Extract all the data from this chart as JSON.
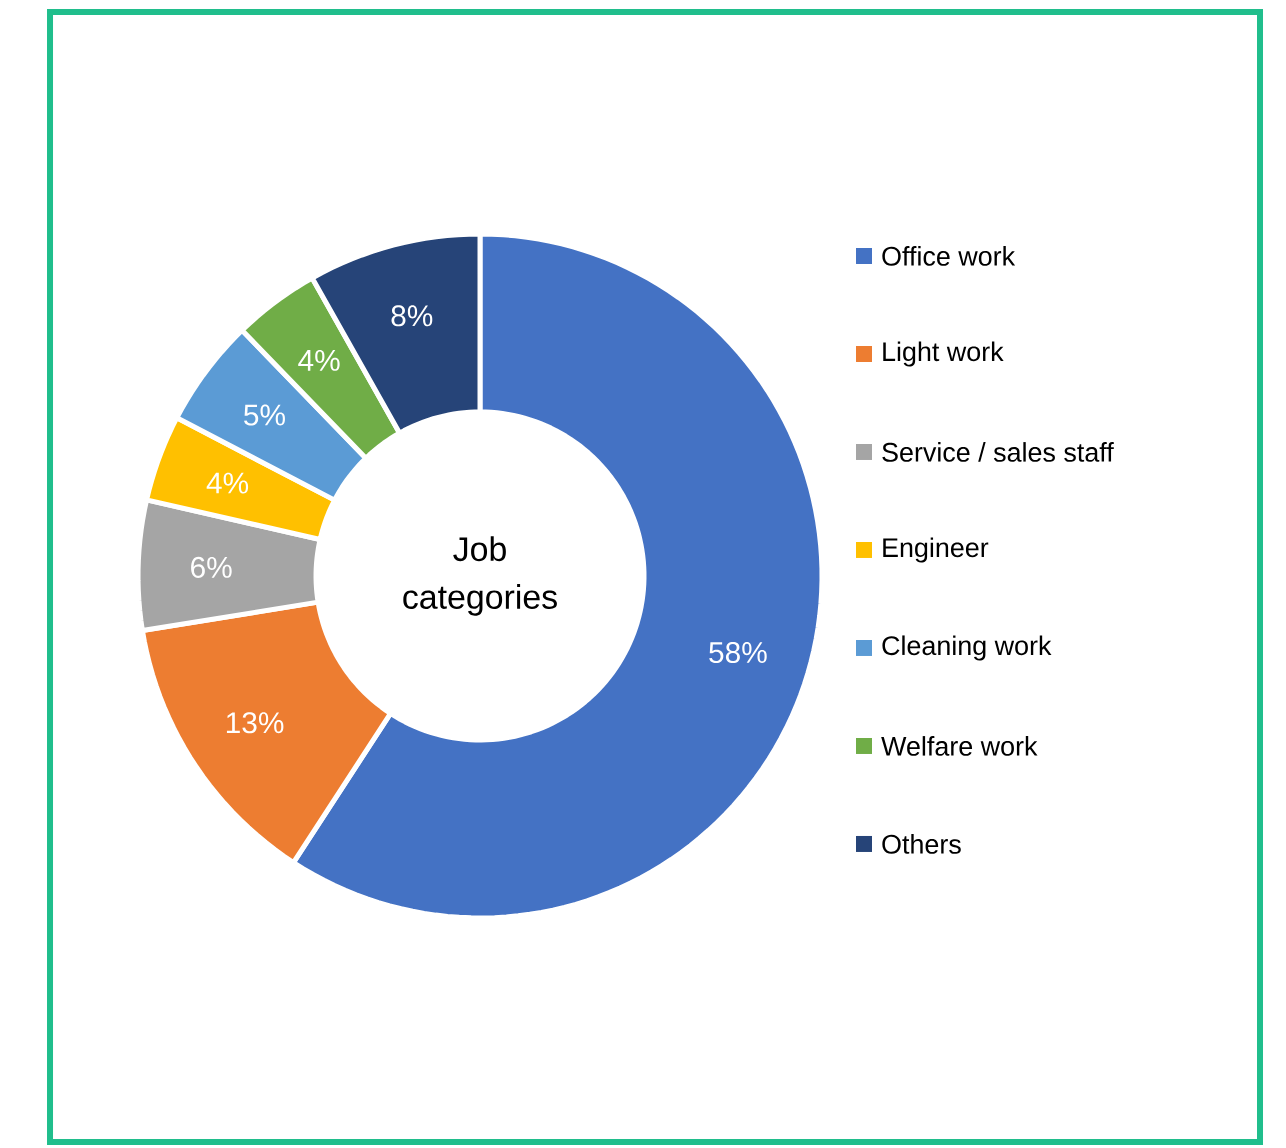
{
  "chart_data": {
    "type": "donut",
    "title": "Job categories",
    "categories": [
      "Office work",
      "Light work",
      "Service / sales staff",
      "Engineer",
      "Cleaning work",
      "Welfare work",
      "Others"
    ],
    "values": [
      58,
      13,
      6,
      4,
      5,
      4,
      8
    ],
    "value_labels": [
      "58%",
      "13%",
      "6%",
      "4%",
      "5%",
      "4%",
      "8%"
    ],
    "colors": [
      "#4472c4",
      "#ed7d31",
      "#a5a5a5",
      "#ffc000",
      "#5b9bd5",
      "#70ad47",
      "#264478"
    ],
    "legend": "right"
  }
}
